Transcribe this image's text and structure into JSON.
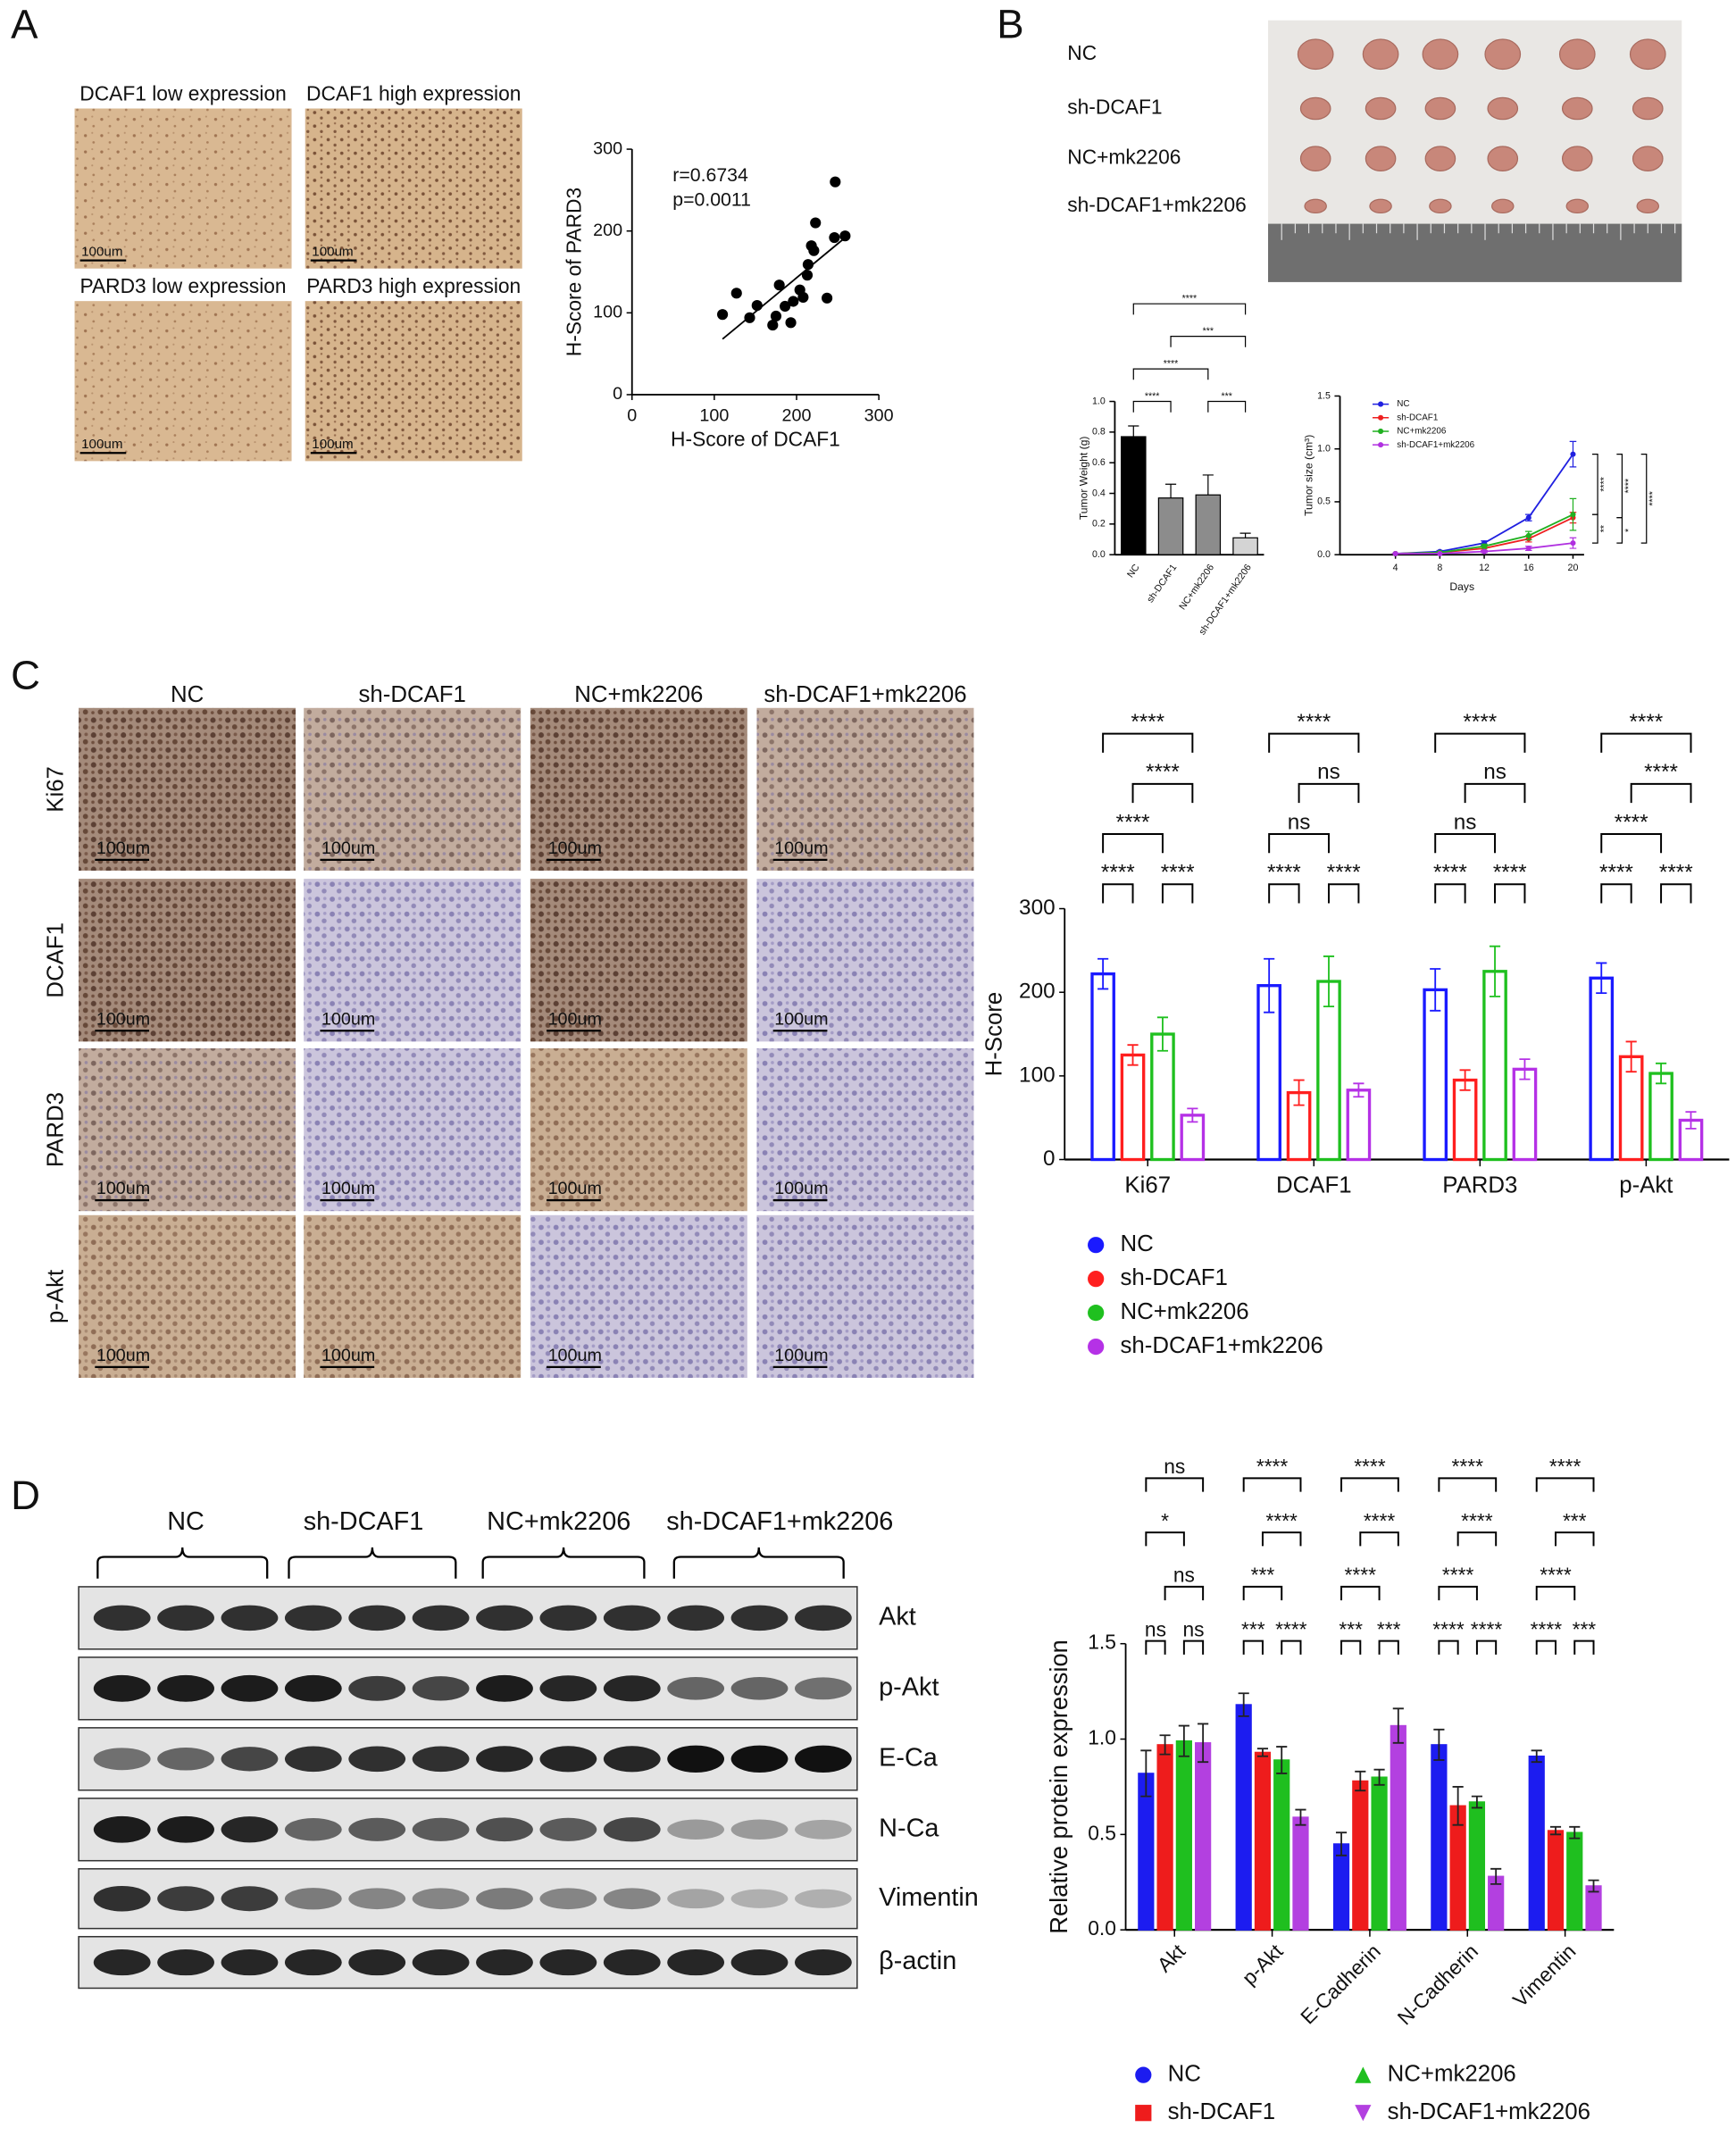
{
  "panels": {
    "a": {
      "letter": "A",
      "images": [
        "DCAF1 low expression",
        "DCAF1 high expression",
        "PARD3 low expression",
        "PARD3 high expression"
      ],
      "scale_bar": "100um"
    },
    "b": {
      "letter": "B",
      "groups": [
        "NC",
        "sh-DCAF1",
        "NC+mk2206",
        "sh-DCAF1+mk2206"
      ]
    },
    "c": {
      "letter": "C",
      "columns": [
        "NC",
        "sh-DCAF1",
        "NC+mk2206",
        "sh-DCAF1+mk2206"
      ],
      "rows": [
        "Ki67",
        "DCAF1",
        "PARD3",
        "p-Akt"
      ],
      "scale_bar": "100um"
    },
    "d": {
      "letter": "D",
      "groups": [
        "NC",
        "sh-DCAF1",
        "NC+mk2206",
        "sh-DCAF1+mk2206"
      ],
      "proteins": [
        "Akt",
        "p-Akt",
        "E-Ca",
        "N-Ca",
        "Vimentin",
        "β-actin"
      ]
    }
  },
  "chart_data": [
    {
      "type": "scatter",
      "xlabel": "H-Score of DCAF1",
      "ylabel": "H-Score of PARD3",
      "x": [
        110,
        127,
        143,
        152,
        171,
        175,
        179,
        186,
        193,
        196,
        204,
        208,
        213,
        214,
        218,
        221,
        223,
        237,
        246,
        247,
        259
      ],
      "y": [
        98,
        124,
        94,
        109,
        85,
        96,
        134,
        108,
        88,
        114,
        128,
        119,
        146,
        159,
        182,
        176,
        210,
        118,
        192,
        260,
        194
      ],
      "color": "#000000",
      "trendline": true,
      "xlim": [
        0,
        300
      ],
      "ylim": [
        0,
        300
      ],
      "xticks": [
        0,
        100,
        200,
        300
      ],
      "yticks": [
        0,
        100,
        200,
        300
      ],
      "annotations": [
        "r=0.6734",
        "p=0.0011"
      ]
    },
    {
      "type": "bar",
      "ylabel": "Tumor Weight (g)",
      "categories": [
        "NC",
        "sh-DCAF1",
        "NC+mk2206",
        "sh-DCAF1+mk2206"
      ],
      "values": [
        0.77,
        0.37,
        0.39,
        0.11
      ],
      "errors": [
        0.07,
        0.09,
        0.13,
        0.03
      ],
      "colors": [
        "#000000",
        "#8c8c8c",
        "#8c8c8c",
        "#d4d4d4"
      ],
      "ylim": [
        0,
        1
      ],
      "yticks": [
        {
          "value": 0,
          "label": "0.0"
        },
        {
          "value": 0.2,
          "label": "0.2"
        },
        {
          "value": 0.4,
          "label": "0.4"
        },
        {
          "value": 0.6,
          "label": "0.6"
        },
        {
          "value": 0.8,
          "label": "0.8"
        },
        {
          "value": 1,
          "label": "1.0"
        }
      ],
      "comparisons": [
        {
          "groups": [
            0,
            1
          ],
          "label": "****"
        },
        {
          "groups": [
            2,
            3
          ],
          "label": "***"
        },
        {
          "groups": [
            0,
            2
          ],
          "label": "****"
        },
        {
          "groups": [
            1,
            3
          ],
          "label": "***"
        },
        {
          "groups": [
            0,
            3
          ],
          "label": "****"
        }
      ]
    },
    {
      "type": "line",
      "xlabel": "Days",
      "ylabel": "Tumor size (cm³)",
      "x": [
        4,
        8,
        12,
        16,
        20
      ],
      "xlim": [
        -1,
        21
      ],
      "xticks": [
        4,
        8,
        12,
        16,
        20
      ],
      "ylim": [
        0,
        1.5
      ],
      "yticks": [
        {
          "value": 0,
          "label": "0.0"
        },
        {
          "value": 0.5,
          "label": "0.5"
        },
        {
          "value": 1,
          "label": "1.0"
        },
        {
          "value": 1.5,
          "label": "1.5"
        }
      ],
      "legend": "upper left",
      "series": [
        {
          "name": "NC",
          "color": "#2020e0",
          "values": [
            0.01,
            0.03,
            0.11,
            0.35,
            0.95
          ],
          "errors": [
            0,
            0.01,
            0.02,
            0.03,
            0.12
          ]
        },
        {
          "name": "sh-DCAF1",
          "color": "#ee2020",
          "values": [
            0.01,
            0.02,
            0.06,
            0.15,
            0.35
          ],
          "errors": [
            0,
            0.01,
            0.02,
            0.03,
            0.05
          ]
        },
        {
          "name": "NC+mk2206",
          "color": "#20b020",
          "values": [
            0.01,
            0.02,
            0.08,
            0.18,
            0.38
          ],
          "errors": [
            0,
            0.01,
            0.02,
            0.04,
            0.15
          ]
        },
        {
          "name": "sh-DCAF1+mk2206",
          "color": "#b030e0",
          "values": [
            0.01,
            0.01,
            0.03,
            0.06,
            0.11
          ],
          "errors": [
            0,
            0,
            0.01,
            0.02,
            0.05
          ]
        }
      ],
      "comparisons": [
        {
          "series": [
            0,
            2
          ],
          "label": "****"
        },
        {
          "series": [
            0,
            1
          ],
          "label": "****"
        },
        {
          "series": [
            0,
            3
          ],
          "label": "****"
        },
        {
          "series": [
            2,
            3
          ],
          "label": "**"
        },
        {
          "series": [
            1,
            3
          ],
          "label": "*"
        }
      ]
    },
    {
      "type": "grouped_bar",
      "style": "outline",
      "ylabel": "H-Score",
      "legend": "bottom",
      "categories": [
        "Ki67",
        "DCAF1",
        "PARD3",
        "p-Akt"
      ],
      "ylim": [
        0,
        300
      ],
      "yticks": [
        0,
        100,
        200,
        300
      ],
      "series": [
        {
          "name": "NC",
          "color": "#1a1aff",
          "marker": "circle",
          "values": [
            222,
            208,
            203,
            217
          ],
          "errors": [
            18,
            32,
            25,
            18
          ]
        },
        {
          "name": "sh-DCAF1",
          "color": "#ff1f1f",
          "marker": "circle",
          "values": [
            125,
            80,
            95,
            123
          ],
          "errors": [
            12,
            15,
            12,
            18
          ]
        },
        {
          "name": "NC+mk2206",
          "color": "#1fc01f",
          "marker": "circle",
          "values": [
            150,
            213,
            225,
            103
          ],
          "errors": [
            20,
            30,
            30,
            12
          ]
        },
        {
          "name": "sh-DCAF1+mk2206",
          "color": "#b531e6",
          "marker": "circle",
          "values": [
            53,
            83,
            108,
            47
          ],
          "errors": [
            8,
            8,
            12,
            10
          ]
        }
      ],
      "comparisons": [
        [
          {
            "groups": [
              0,
              1
            ],
            "label": "****"
          },
          {
            "groups": [
              2,
              3
            ],
            "label": "****"
          },
          {
            "groups": [
              0,
              2
            ],
            "label": "****"
          },
          {
            "groups": [
              1,
              3
            ],
            "label": "****"
          },
          {
            "groups": [
              0,
              3
            ],
            "label": "****"
          }
        ],
        [
          {
            "groups": [
              0,
              1
            ],
            "label": "****"
          },
          {
            "groups": [
              2,
              3
            ],
            "label": "****"
          },
          {
            "groups": [
              0,
              2
            ],
            "label": "ns"
          },
          {
            "groups": [
              1,
              3
            ],
            "label": "ns"
          },
          {
            "groups": [
              0,
              3
            ],
            "label": "****"
          }
        ],
        [
          {
            "groups": [
              0,
              1
            ],
            "label": "****"
          },
          {
            "groups": [
              2,
              3
            ],
            "label": "****"
          },
          {
            "groups": [
              0,
              2
            ],
            "label": "ns"
          },
          {
            "groups": [
              1,
              3
            ],
            "label": "ns"
          },
          {
            "groups": [
              0,
              3
            ],
            "label": "****"
          }
        ],
        [
          {
            "groups": [
              0,
              1
            ],
            "label": "****"
          },
          {
            "groups": [
              2,
              3
            ],
            "label": "****"
          },
          {
            "groups": [
              0,
              2
            ],
            "label": "****"
          },
          {
            "groups": [
              1,
              3
            ],
            "label": "****"
          },
          {
            "groups": [
              0,
              3
            ],
            "label": "****"
          }
        ]
      ]
    },
    {
      "type": "grouped_bar",
      "style": "filled",
      "ylabel": "Relative protein expression",
      "legend": "bottom",
      "categories": [
        "Akt",
        "p-Akt",
        "E-Cadherin",
        "N-Cadherin",
        "Vimentin"
      ],
      "ylim": [
        0,
        1.5
      ],
      "yticks": [
        {
          "value": 0,
          "label": "0.0"
        },
        {
          "value": 0.5,
          "label": "0.5"
        },
        {
          "value": 1,
          "label": "1.0"
        },
        {
          "value": 1.5,
          "label": "1.5"
        }
      ],
      "series": [
        {
          "name": "NC",
          "color": "#1c1cf0",
          "marker": "circle",
          "values": [
            0.82,
            1.18,
            0.45,
            0.97,
            0.91
          ],
          "errors": [
            0.12,
            0.06,
            0.06,
            0.08,
            0.03
          ]
        },
        {
          "name": "sh-DCAF1",
          "color": "#ee1c1c",
          "marker": "square",
          "values": [
            0.97,
            0.93,
            0.78,
            0.65,
            0.52
          ],
          "errors": [
            0.05,
            0.02,
            0.05,
            0.1,
            0.02
          ]
        },
        {
          "name": "NC+mk2206",
          "color": "#1fbf1f",
          "marker": "triangle-up",
          "values": [
            0.99,
            0.89,
            0.8,
            0.67,
            0.51
          ],
          "errors": [
            0.08,
            0.07,
            0.04,
            0.03,
            0.03
          ]
        },
        {
          "name": "sh-DCAF1+mk2206",
          "color": "#b340e0",
          "marker": "triangle-down",
          "values": [
            0.98,
            0.59,
            1.07,
            0.28,
            0.23
          ],
          "errors": [
            0.1,
            0.04,
            0.09,
            0.04,
            0.03
          ]
        }
      ],
      "comparisons": [
        [
          {
            "groups": [
              0,
              1
            ],
            "label": "ns"
          },
          {
            "groups": [
              2,
              3
            ],
            "label": "ns"
          },
          {
            "groups": [
              1,
              3
            ],
            "label": "ns"
          },
          {
            "groups": [
              0,
              2
            ],
            "label": "*"
          },
          {
            "groups": [
              0,
              3
            ],
            "label": "ns"
          }
        ],
        [
          {
            "groups": [
              0,
              1
            ],
            "label": "***"
          },
          {
            "groups": [
              2,
              3
            ],
            "label": "****"
          },
          {
            "groups": [
              0,
              2
            ],
            "label": "***"
          },
          {
            "groups": [
              1,
              3
            ],
            "label": "****"
          },
          {
            "groups": [
              0,
              3
            ],
            "label": "****"
          }
        ],
        [
          {
            "groups": [
              0,
              1
            ],
            "label": "***"
          },
          {
            "groups": [
              2,
              3
            ],
            "label": "***"
          },
          {
            "groups": [
              0,
              2
            ],
            "label": "****"
          },
          {
            "groups": [
              1,
              3
            ],
            "label": "****"
          },
          {
            "groups": [
              0,
              3
            ],
            "label": "****"
          }
        ],
        [
          {
            "groups": [
              0,
              1
            ],
            "label": "****"
          },
          {
            "groups": [
              2,
              3
            ],
            "label": "****"
          },
          {
            "groups": [
              0,
              2
            ],
            "label": "****"
          },
          {
            "groups": [
              1,
              3
            ],
            "label": "****"
          },
          {
            "groups": [
              0,
              3
            ],
            "label": "****"
          }
        ],
        [
          {
            "groups": [
              0,
              1
            ],
            "label": "****"
          },
          {
            "groups": [
              2,
              3
            ],
            "label": "***"
          },
          {
            "groups": [
              0,
              2
            ],
            "label": "****"
          },
          {
            "groups": [
              1,
              3
            ],
            "label": "***"
          },
          {
            "groups": [
              0,
              3
            ],
            "label": "****"
          }
        ]
      ]
    }
  ]
}
